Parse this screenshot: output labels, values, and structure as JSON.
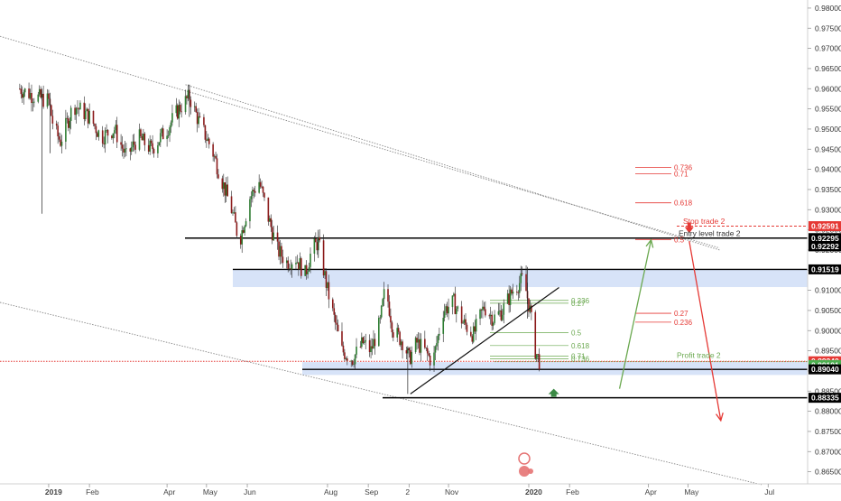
{
  "chart_data": {
    "type": "candlestick",
    "x_range": [
      "2018-11-25",
      "2020-07-31"
    ],
    "ylim": [
      0.862,
      0.982
    ],
    "y_ticks": [
      "0.98000",
      "0.97500",
      "0.97000",
      "0.96500",
      "0.96000",
      "0.95500",
      "0.95000",
      "0.94500",
      "0.94000",
      "0.93500",
      "0.93000",
      "0.92500",
      "0.92000",
      "0.91500",
      "0.91000",
      "0.90500",
      "0.90000",
      "0.89500",
      "0.89000",
      "0.88500",
      "0.88000",
      "0.87500",
      "0.87000",
      "0.86500"
    ],
    "y_tick_values": [
      0.98,
      0.975,
      0.97,
      0.965,
      0.96,
      0.955,
      0.95,
      0.945,
      0.94,
      0.935,
      0.93,
      0.925,
      0.92,
      0.915,
      0.91,
      0.905,
      0.9,
      0.895,
      0.89,
      0.885,
      0.88,
      0.875,
      0.87,
      0.865
    ],
    "x_ticks": [
      {
        "label": "2019",
        "date": "2019-01-01"
      },
      {
        "label": "Feb",
        "date": "2019-02-01"
      },
      {
        "label": "Apr",
        "date": "2019-04-01"
      },
      {
        "label": "May",
        "date": "2019-05-01"
      },
      {
        "label": "Jun",
        "date": "2019-06-01"
      },
      {
        "label": "Aug",
        "date": "2019-08-01"
      },
      {
        "label": "Sep",
        "date": "2019-09-01"
      },
      {
        "label": "2",
        "date": "2019-10-02"
      },
      {
        "label": "Nov",
        "date": "2019-11-01"
      },
      {
        "label": "2020",
        "date": "2020-01-01"
      },
      {
        "label": "Feb",
        "date": "2020-02-01"
      },
      {
        "label": "Apr",
        "date": "2020-04-01"
      },
      {
        "label": "May",
        "date": "2020-05-01"
      },
      {
        "label": "Jul",
        "date": "2020-07-01"
      }
    ],
    "price_path": [
      [
        "2018-12-10",
        0.96
      ],
      [
        "2018-12-22",
        0.958
      ],
      [
        "2019-01-01",
        0.957
      ],
      [
        "2019-01-05",
        0.95
      ],
      [
        "2019-01-10",
        0.947
      ],
      [
        "2019-01-20",
        0.956
      ],
      [
        "2019-02-01",
        0.953
      ],
      [
        "2019-02-10",
        0.948
      ],
      [
        "2019-02-20",
        0.95
      ],
      [
        "2019-03-01",
        0.943
      ],
      [
        "2019-03-10",
        0.948
      ],
      [
        "2019-03-20",
        0.945
      ],
      [
        "2019-04-01",
        0.95
      ],
      [
        "2019-04-10",
        0.955
      ],
      [
        "2019-04-18",
        0.958
      ],
      [
        "2019-04-25",
        0.952
      ],
      [
        "2019-05-05",
        0.945
      ],
      [
        "2019-05-12",
        0.938
      ],
      [
        "2019-05-20",
        0.93
      ],
      [
        "2019-05-26",
        0.922
      ],
      [
        "2019-06-03",
        0.933
      ],
      [
        "2019-06-10",
        0.937
      ],
      [
        "2019-06-17",
        0.928
      ],
      [
        "2019-06-24",
        0.92
      ],
      [
        "2019-07-01",
        0.917
      ],
      [
        "2019-07-08",
        0.918
      ],
      [
        "2019-07-15",
        0.914
      ],
      [
        "2019-07-20",
        0.92
      ],
      [
        "2019-07-25",
        0.922
      ],
      [
        "2019-08-01",
        0.91
      ],
      [
        "2019-08-06",
        0.903
      ],
      [
        "2019-08-12",
        0.895
      ],
      [
        "2019-08-20",
        0.893
      ],
      [
        "2019-08-28",
        0.897
      ],
      [
        "2019-09-03",
        0.895
      ],
      [
        "2019-09-10",
        0.902
      ],
      [
        "2019-09-14",
        0.911
      ],
      [
        "2019-09-20",
        0.9
      ],
      [
        "2019-09-28",
        0.897
      ],
      [
        "2019-10-02",
        0.893
      ],
      [
        "2019-10-08",
        0.897
      ],
      [
        "2019-10-14",
        0.895
      ],
      [
        "2019-10-20",
        0.892
      ],
      [
        "2019-10-28",
        0.905
      ],
      [
        "2019-11-05",
        0.907
      ],
      [
        "2019-11-12",
        0.902
      ],
      [
        "2019-11-20",
        0.899
      ],
      [
        "2019-11-28",
        0.906
      ],
      [
        "2019-12-05",
        0.903
      ],
      [
        "2019-12-12",
        0.905
      ],
      [
        "2019-12-20",
        0.91
      ],
      [
        "2019-12-28",
        0.913
      ],
      [
        "2020-01-02",
        0.905
      ],
      [
        "2020-01-06",
        0.895
      ],
      [
        "2020-01-09",
        0.8924
      ]
    ],
    "wick_extremes": [
      {
        "date": "2018-12-27",
        "low": 0.929,
        "high": 0.96
      },
      {
        "date": "2019-01-02",
        "low": 0.944,
        "high": 0.959
      },
      {
        "date": "2019-04-18",
        "low": 0.953,
        "high": 0.961
      },
      {
        "date": "2019-07-25",
        "low": 0.918,
        "high": 0.925
      },
      {
        "date": "2019-10-01",
        "low": 0.8843,
        "high": 0.896
      },
      {
        "date": "2019-12-31",
        "low": 0.903,
        "high": 0.9158
      }
    ],
    "levels": [
      {
        "name": "entry",
        "value": 0.92295,
        "color": "#000000",
        "style": "solid"
      },
      {
        "name": "stop",
        "value": 0.92591,
        "color": "#e53935",
        "style": "dashed"
      },
      {
        "name": "resistance",
        "value": 0.91519,
        "color": "#000000",
        "style": "solid"
      },
      {
        "name": "support-1",
        "value": 0.8904,
        "color": "#000000",
        "style": "solid"
      },
      {
        "name": "support-2",
        "value": 0.88335,
        "color": "#000000",
        "style": "solid"
      },
      {
        "name": "profit",
        "value": 0.8923,
        "color": "#6aa84f",
        "style": "dotted"
      },
      {
        "name": "last-price",
        "value": 0.8924,
        "color": "#e53935",
        "style": "dotted"
      }
    ],
    "zones": [
      {
        "from": 0.9108,
        "to": 0.9152,
        "color": "#c9d9f5"
      },
      {
        "from": 0.889,
        "to": 0.8922,
        "color": "#c9d9f5"
      }
    ],
    "price_labels": [
      {
        "text": "0.92591",
        "value": 0.92591,
        "bg": "#e53935",
        "fg": "#ffffff"
      },
      {
        "text": "0.92295",
        "value": 0.92295,
        "bg": "#000000",
        "fg": "#ffffff"
      },
      {
        "text": "0.92292",
        "value": 0.92292,
        "bg": "#000000",
        "fg": "#ffffff"
      },
      {
        "text": "0.91519",
        "value": 0.91519,
        "bg": "#000000",
        "fg": "#ffffff"
      },
      {
        "text": "0.89240",
        "value": 0.8924,
        "bg": "#e53935",
        "fg": "#ffffff"
      },
      {
        "text": "0.89191",
        "value": 0.89191,
        "bg": "#4caf50",
        "fg": "#ffffff"
      },
      {
        "text": "0.89040",
        "value": 0.8904,
        "bg": "#000000",
        "fg": "#ffffff"
      },
      {
        "text": "0.88335",
        "value": 0.88335,
        "bg": "#000000",
        "fg": "#ffffff"
      }
    ],
    "fib_green": [
      {
        "label": "0.236",
        "value": 0.9075
      },
      {
        "label": "0.27",
        "value": 0.9068
      },
      {
        "label": "0.5",
        "value": 0.8995
      },
      {
        "label": "0.618",
        "value": 0.8963
      },
      {
        "label": "0.71",
        "value": 0.8937
      },
      {
        "label": "0.736",
        "value": 0.893
      }
    ],
    "fib_red": [
      {
        "label": "0.736",
        "value": 0.9405
      },
      {
        "label": "0.71",
        "value": 0.9389
      },
      {
        "label": "0.618",
        "value": 0.9317
      },
      {
        "label": "0.5",
        "value": 0.9226
      },
      {
        "label": "0.27",
        "value": 0.9043
      },
      {
        "label": "0.236",
        "value": 0.9021
      }
    ],
    "annotations": [
      {
        "text": "Stop trade 2",
        "value": 0.9265,
        "color": "#e53935"
      },
      {
        "text": "Entry level trade 2",
        "value": 0.9234,
        "color": "#333333"
      },
      {
        "text": "Profit trade 2",
        "value": 0.8932,
        "color": "#6aa84f"
      }
    ],
    "channel_lines": [
      {
        "from": [
          "2018-11-25",
          0.973
        ],
        "to": [
          "2020-05-25",
          0.9205
        ]
      },
      {
        "from": [
          "2019-04-15",
          0.961
        ],
        "to": [
          "2020-05-25",
          0.92
        ]
      },
      {
        "from": [
          "2018-11-25",
          0.907
        ],
        "to": [
          "2020-06-26",
          0.8618
        ]
      }
    ],
    "triangle_lines": [
      {
        "from": [
          "2019-10-03",
          0.8843
        ],
        "to": [
          "2020-01-24",
          0.9107
        ]
      }
    ],
    "arrows": [
      {
        "color": "#6aa84f",
        "from": [
          "2020-03-10",
          0.8856
        ],
        "to": [
          "2020-04-03",
          0.9225
        ]
      },
      {
        "color": "#e53935",
        "from": [
          "2020-05-02",
          0.9222
        ],
        "to": [
          "2020-05-26",
          0.8777
        ]
      }
    ]
  }
}
